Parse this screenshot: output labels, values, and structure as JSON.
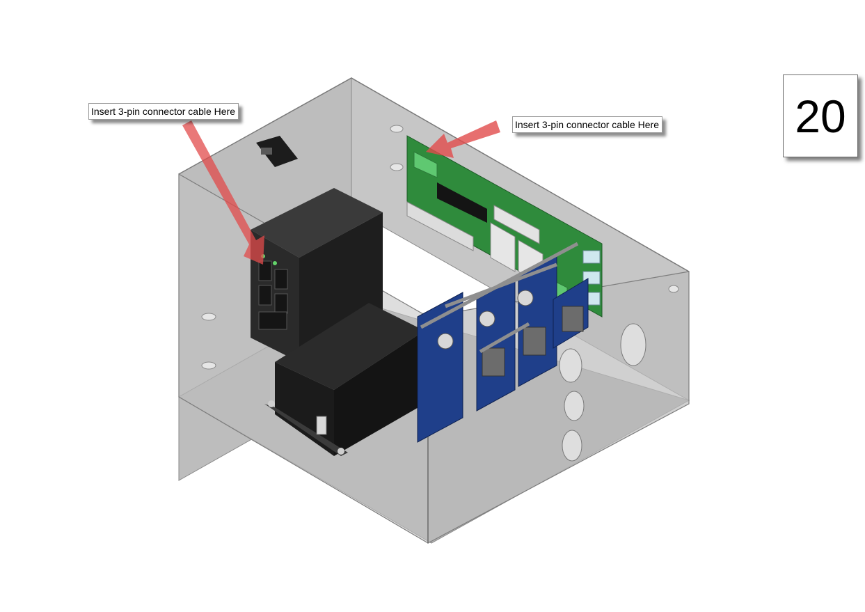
{
  "step_number": "20",
  "callouts": {
    "left": "Insert 3-pin connector cable Here",
    "right": "Insert 3-pin connector cable Here"
  },
  "colors": {
    "enclosure": "#b9b9b9",
    "pcb_green": "#2f8b3c",
    "pcb_blue": "#1f3f8a",
    "heatsink": "#1f1f1f",
    "arrow": "#e14b4b"
  }
}
